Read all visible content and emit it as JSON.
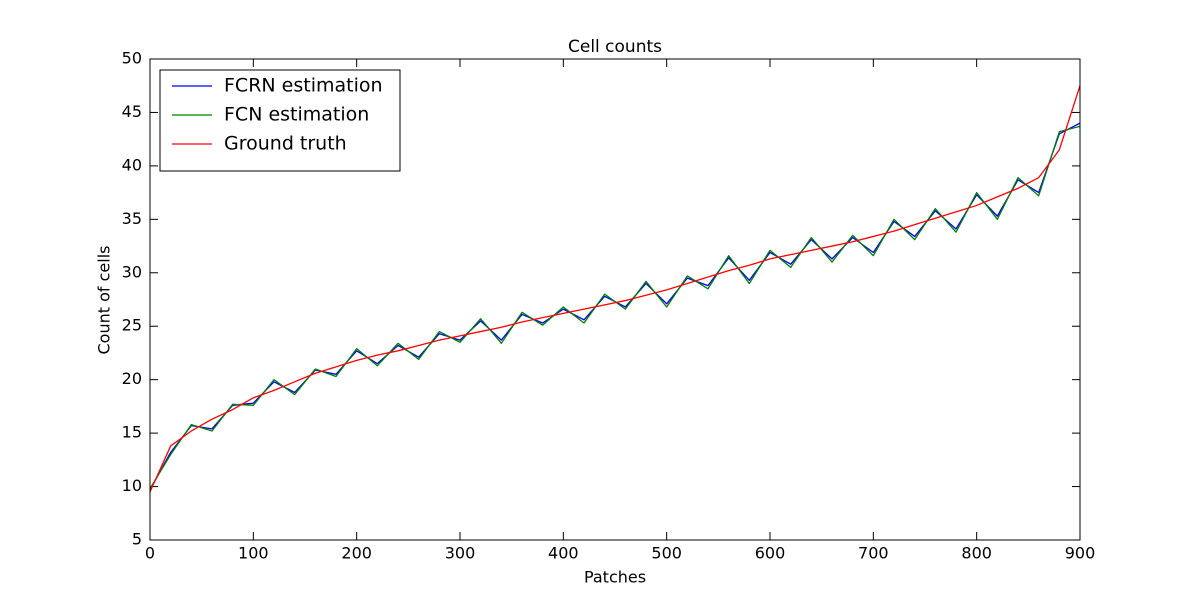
{
  "chart_data": {
    "type": "line",
    "title": "Cell counts",
    "xlabel": "Patches",
    "ylabel": "Count of cells",
    "x": [
      0,
      20,
      40,
      60,
      80,
      100,
      120,
      140,
      160,
      180,
      200,
      220,
      240,
      260,
      280,
      300,
      320,
      340,
      360,
      380,
      400,
      420,
      440,
      460,
      480,
      500,
      520,
      540,
      560,
      580,
      600,
      620,
      640,
      660,
      680,
      700,
      720,
      740,
      760,
      780,
      800,
      820,
      840,
      860,
      880,
      900
    ],
    "series": [
      {
        "name": "FCRN estimation",
        "color": "#0000ff",
        "values": [
          9.7,
          13.2,
          15.7,
          15.4,
          17.6,
          17.8,
          19.8,
          18.8,
          20.9,
          20.5,
          22.7,
          21.5,
          23.2,
          22.1,
          24.3,
          23.7,
          25.5,
          23.7,
          26.1,
          25.3,
          26.6,
          25.6,
          27.8,
          26.8,
          29.0,
          27.1,
          29.5,
          28.8,
          31.4,
          29.3,
          31.9,
          30.8,
          33.1,
          31.3,
          33.3,
          31.9,
          34.8,
          33.4,
          35.8,
          34.1,
          37.3,
          35.3,
          38.7,
          37.5,
          43.0,
          44.0
        ]
      },
      {
        "name": "FCN estimation",
        "color": "#008000",
        "values": [
          9.8,
          13.0,
          15.8,
          15.2,
          17.7,
          17.6,
          20.0,
          18.6,
          21.0,
          20.3,
          22.9,
          21.3,
          23.4,
          21.9,
          24.5,
          23.5,
          25.7,
          23.4,
          26.3,
          25.1,
          26.8,
          25.3,
          28.0,
          26.6,
          29.2,
          26.8,
          29.7,
          28.5,
          31.6,
          29.0,
          32.1,
          30.5,
          33.3,
          31.0,
          33.5,
          31.6,
          35.0,
          33.1,
          36.0,
          33.8,
          37.5,
          35.0,
          38.9,
          37.2,
          43.2,
          43.7
        ]
      },
      {
        "name": "Ground truth",
        "color": "#ff0000",
        "values": [
          9.5,
          13.8,
          15.2,
          16.3,
          17.2,
          18.3,
          19.0,
          19.8,
          20.6,
          21.2,
          21.8,
          22.3,
          22.7,
          23.2,
          23.7,
          24.1,
          24.5,
          24.9,
          25.4,
          25.8,
          26.2,
          26.6,
          27.0,
          27.4,
          27.9,
          28.4,
          29.0,
          29.6,
          30.2,
          30.7,
          31.3,
          31.7,
          32.1,
          32.5,
          32.9,
          33.4,
          33.9,
          34.5,
          35.1,
          35.7,
          36.3,
          37.1,
          37.9,
          38.9,
          41.5,
          47.5
        ]
      }
    ],
    "xlim": [
      0,
      900
    ],
    "xticks": [
      0,
      100,
      200,
      300,
      400,
      500,
      600,
      700,
      800,
      900
    ],
    "ylim": [
      5,
      50
    ],
    "yticks": [
      5,
      10,
      15,
      20,
      25,
      30,
      35,
      40,
      45,
      50
    ],
    "grid": false,
    "legend": "upper left"
  }
}
